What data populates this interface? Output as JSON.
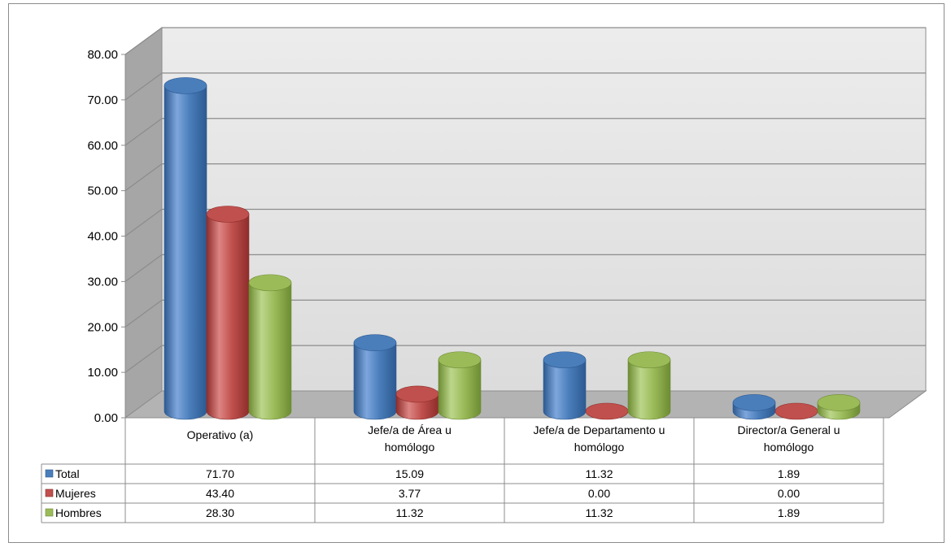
{
  "chart_data": {
    "type": "bar",
    "categories": [
      [
        "Operativo (a)"
      ],
      [
        "Jefe/a de Área u",
        "homólogo"
      ],
      [
        "Jefe/a de Departamento u",
        "homólogo"
      ],
      [
        "Director/a General u",
        "homólogo"
      ]
    ],
    "series": [
      {
        "name": "Total",
        "values": [
          71.7,
          15.09,
          11.32,
          1.89
        ],
        "color": "#4a7ebb",
        "dark": "#2d5a91",
        "light": "#7da6dc"
      },
      {
        "name": "Mujeres",
        "values": [
          43.4,
          3.77,
          0.0,
          0.0
        ],
        "color": "#c0504d",
        "dark": "#8e2d2b",
        "light": "#dc8583"
      },
      {
        "name": "Hombres",
        "values": [
          28.3,
          11.32,
          11.32,
          1.89
        ],
        "color": "#9bbb59",
        "dark": "#6d8c33",
        "light": "#bcd68a"
      }
    ],
    "y_ticks": [
      "0.00",
      "10.00",
      "20.00",
      "30.00",
      "40.00",
      "50.00",
      "60.00",
      "70.00",
      "80.00"
    ],
    "ylim": [
      0,
      80
    ],
    "cells": [
      [
        "71.70",
        "15.09",
        "11.32",
        "1.89"
      ],
      [
        "43.40",
        "3.77",
        "0.00",
        "0.00"
      ],
      [
        "28.30",
        "11.32",
        "11.32",
        "1.89"
      ]
    ],
    "grid": true,
    "legend": "data-table"
  }
}
